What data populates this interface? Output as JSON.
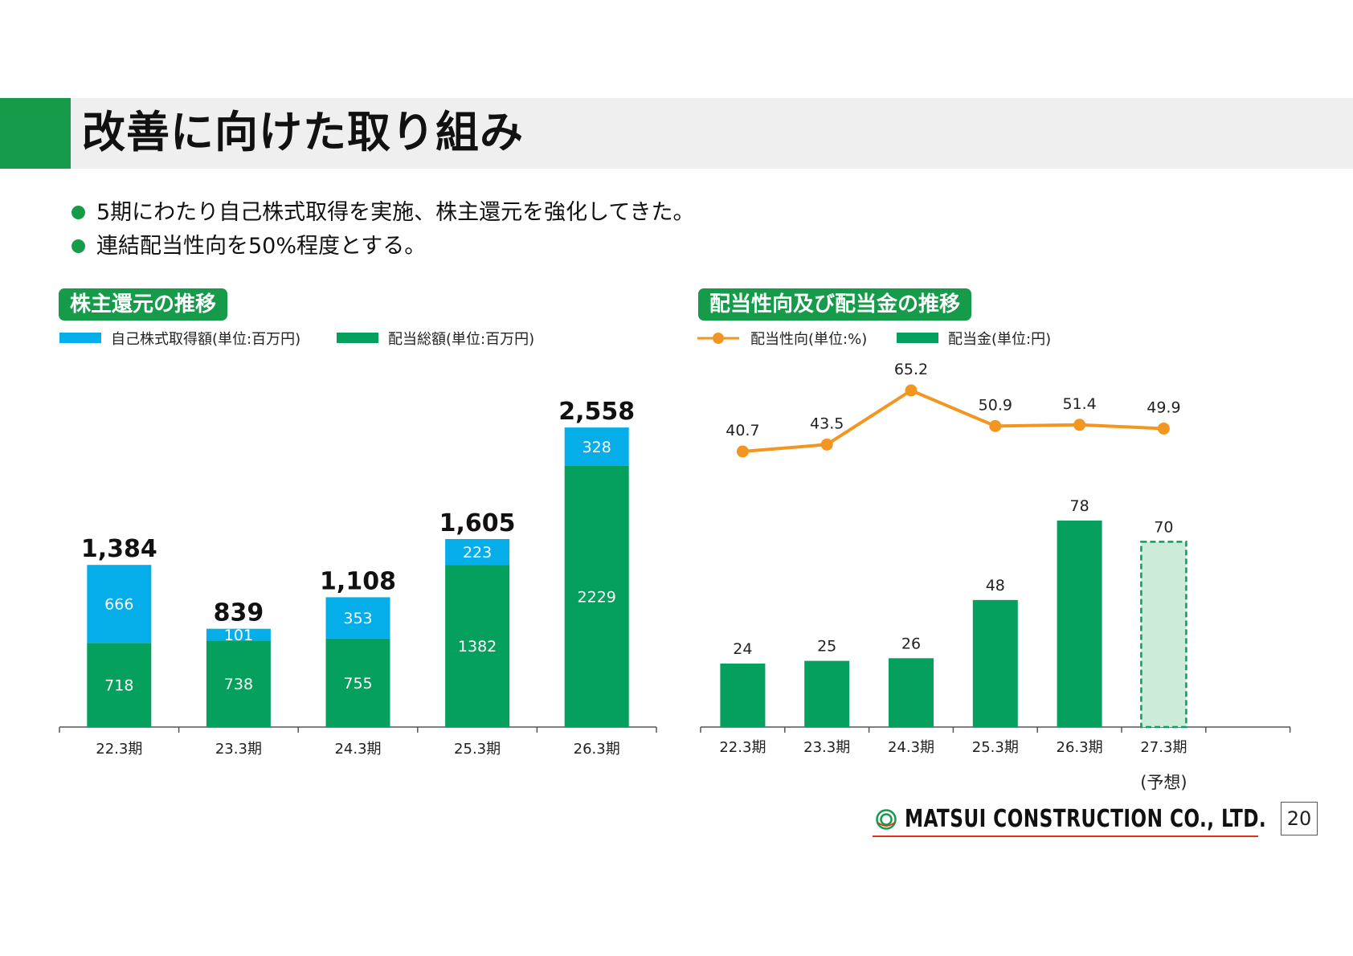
{
  "page": {
    "title": "改善に向けた取り組み",
    "bullets": [
      "5期にわたり自己株式取得を実施、株主還元を強化してきた。",
      "連結配当性向を50%程度とする。"
    ],
    "company_name": "MATSUI CONSTRUCTION CO., LTD.",
    "page_number": "20"
  },
  "colors": {
    "brand_green": "#169b4a",
    "dividend_green": "#05a05e",
    "buyback_blue": "#05aee9",
    "payout_orange": "#f39621",
    "forecast_fill": "#cdebd9"
  },
  "chart_data": [
    {
      "type": "bar",
      "stacked": true,
      "title": "株主還元の推移",
      "categories": [
        "22.3期",
        "23.3期",
        "24.3期",
        "25.3期",
        "26.3期"
      ],
      "series": [
        {
          "name": "配当総額(単位:百万円)",
          "values": [
            718,
            738,
            755,
            1382,
            2229
          ],
          "color": "#05a05e"
        },
        {
          "name": "自己株式取得額(単位:百万円)",
          "values": [
            666,
            101,
            353,
            223,
            328
          ],
          "color": "#05aee9"
        }
      ],
      "totals": [
        "1,384",
        "839",
        "1,108",
        "1,605",
        "2,558"
      ],
      "legend_order": [
        "自己株式取得額(単位:百万円)",
        "配当総額(単位:百万円)"
      ],
      "legend_position": "top-left",
      "ylim": [
        0,
        2700
      ],
      "grid": false
    },
    {
      "type": "bar",
      "title": "配当性向及び配当金の推移",
      "categories": [
        "22.3期",
        "23.3期",
        "24.3期",
        "25.3期",
        "26.3期",
        "27.3期"
      ],
      "category_note": {
        "index": 5,
        "text": "(予想)"
      },
      "series": [
        {
          "name": "配当性向(単位:%)",
          "type": "line",
          "values": [
            40.7,
            43.5,
            65.2,
            50.9,
            51.4,
            49.9
          ],
          "color": "#f39621"
        },
        {
          "name": "配当金(単位:円)",
          "type": "bar",
          "values": [
            24,
            25,
            26,
            48,
            78,
            70
          ],
          "color": "#05a05e",
          "forecast_index": 5
        }
      ],
      "legend_position": "top-left",
      "grid": false
    }
  ]
}
